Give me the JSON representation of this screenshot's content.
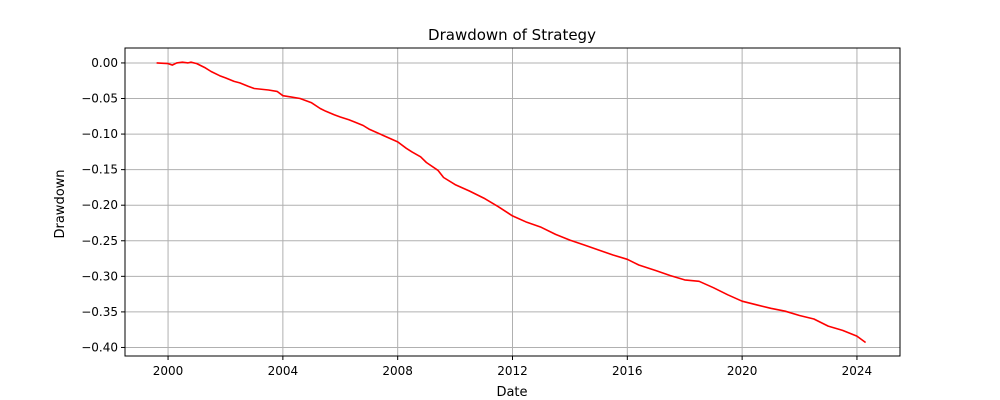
{
  "chart_data": {
    "type": "line",
    "title": "Drawdown of Strategy",
    "xlabel": "Date",
    "ylabel": "Drawdown",
    "xlim": [
      1998.5,
      2025.5
    ],
    "ylim": [
      -0.412,
      0.021
    ],
    "grid": true,
    "line_color": "#ff0000",
    "x_ticks": [
      2000,
      2004,
      2008,
      2012,
      2016,
      2020,
      2024
    ],
    "x_tick_labels": [
      "2000",
      "2004",
      "2008",
      "2012",
      "2016",
      "2020",
      "2024"
    ],
    "y_ticks": [
      0.0,
      -0.05,
      -0.1,
      -0.15,
      -0.2,
      -0.25,
      -0.3,
      -0.35,
      -0.4
    ],
    "y_tick_labels": [
      "0.00",
      "−0.05",
      "−0.10",
      "−0.15",
      "−0.20",
      "−0.25",
      "−0.30",
      "−0.35",
      "−0.40"
    ],
    "series": [
      {
        "x": [
          1999.6,
          2000.0,
          2000.15,
          2000.3,
          2000.5,
          2000.7,
          2000.8,
          2001.0,
          2001.3,
          2001.5,
          2001.8,
          2002.0,
          2002.3,
          2002.5,
          2002.8,
          2003.0,
          2003.5,
          2003.8,
          2004.0,
          2004.3,
          2004.6,
          2004.8,
          2005.0,
          2005.3,
          2005.5,
          2005.8,
          2006.0,
          2006.3,
          2006.5,
          2006.8,
          2007.0,
          2007.5,
          2008.0,
          2008.3,
          2008.5,
          2008.8,
          2009.0,
          2009.4,
          2009.6,
          2010.0,
          2010.5,
          2011.0,
          2011.5,
          2012.0,
          2012.5,
          2013.0,
          2013.5,
          2014.0,
          2014.5,
          2015.0,
          2015.5,
          2016.0,
          2016.4,
          2017.0,
          2017.5,
          2018.0,
          2018.5,
          2019.0,
          2019.5,
          2020.0,
          2020.5,
          2021.0,
          2021.5,
          2022.0,
          2022.5,
          2023.0,
          2023.5,
          2024.0,
          2024.3
        ],
        "values": [
          0.0,
          -0.001,
          -0.003,
          0.0,
          0.001,
          0.0,
          0.001,
          -0.001,
          -0.007,
          -0.012,
          -0.018,
          -0.021,
          -0.026,
          -0.028,
          -0.033,
          -0.036,
          -0.038,
          -0.04,
          -0.046,
          -0.048,
          -0.05,
          -0.053,
          -0.056,
          -0.064,
          -0.068,
          -0.073,
          -0.076,
          -0.08,
          -0.083,
          -0.088,
          -0.093,
          -0.102,
          -0.111,
          -0.12,
          -0.125,
          -0.132,
          -0.14,
          -0.151,
          -0.161,
          -0.171,
          -0.18,
          -0.19,
          -0.202,
          -0.215,
          -0.224,
          -0.231,
          -0.241,
          -0.249,
          -0.256,
          -0.263,
          -0.27,
          -0.276,
          -0.284,
          -0.292,
          -0.299,
          -0.305,
          -0.307,
          -0.316,
          -0.326,
          -0.335,
          -0.34,
          -0.345,
          -0.349,
          -0.355,
          -0.36,
          -0.37,
          -0.376,
          -0.384,
          -0.393
        ]
      }
    ]
  }
}
